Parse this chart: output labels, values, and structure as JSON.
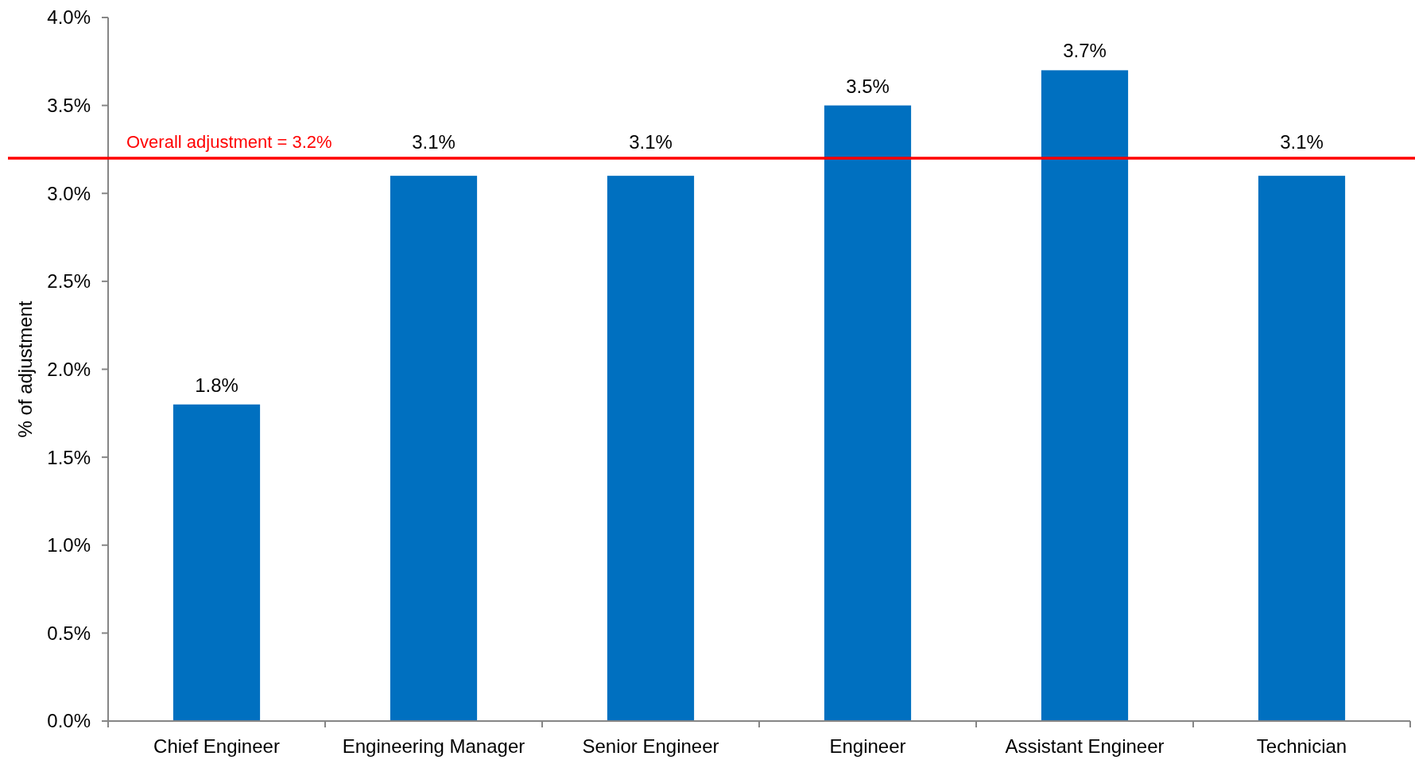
{
  "chart_data": {
    "type": "bar",
    "ylabel": "% of adjustment",
    "categories": [
      "Chief Engineer",
      "Engineering Manager",
      "Senior Engineer",
      "Engineer",
      "Assistant Engineer",
      "Technician"
    ],
    "values": [
      1.8,
      3.1,
      3.1,
      3.5,
      3.7,
      3.1
    ],
    "color": "#0070c0",
    "value_labels": [
      "1.8%",
      "3.1%",
      "3.1%",
      "3.5%",
      "3.7%",
      "3.1%"
    ],
    "ylim": [
      0,
      4
    ],
    "yticks": [
      {
        "value": 0,
        "label": "0.0%"
      },
      {
        "value": 0.5,
        "label": "0.5%"
      },
      {
        "value": 1,
        "label": "1.0%"
      },
      {
        "value": 1.5,
        "label": "1.5%"
      },
      {
        "value": 2,
        "label": "2.0%"
      },
      {
        "value": 2.5,
        "label": "2.5%"
      },
      {
        "value": 3,
        "label": "3.0%"
      },
      {
        "value": 3.5,
        "label": "3.5%"
      },
      {
        "value": 4,
        "label": "4.0%"
      }
    ],
    "ref_lines": [
      {
        "axis": "y",
        "value": 3.2,
        "label": "Overall adjustment = 3.2%",
        "color": "#ff0000"
      }
    ],
    "grid": false
  }
}
